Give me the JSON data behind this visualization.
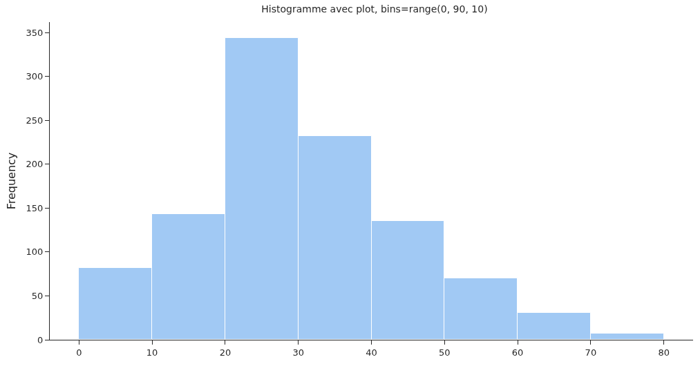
{
  "chart_data": {
    "type": "histogram",
    "title": "Histogramme avec plot, bins=range(0, 90, 10)",
    "ylabel": "Frequency",
    "bins": [
      0,
      10,
      20,
      30,
      40,
      50,
      60,
      70,
      80
    ],
    "values": [
      82,
      143,
      344,
      232,
      135,
      70,
      31,
      7
    ],
    "color": "#a1c9f4",
    "xlim": [
      -4,
      84
    ],
    "xticks": [
      0,
      10,
      20,
      30,
      40,
      50,
      60,
      70,
      80
    ],
    "ylim": [
      0,
      362
    ],
    "yticks": [
      0,
      50,
      100,
      150,
      200,
      250,
      300,
      350
    ],
    "grid": false,
    "legend": false
  }
}
